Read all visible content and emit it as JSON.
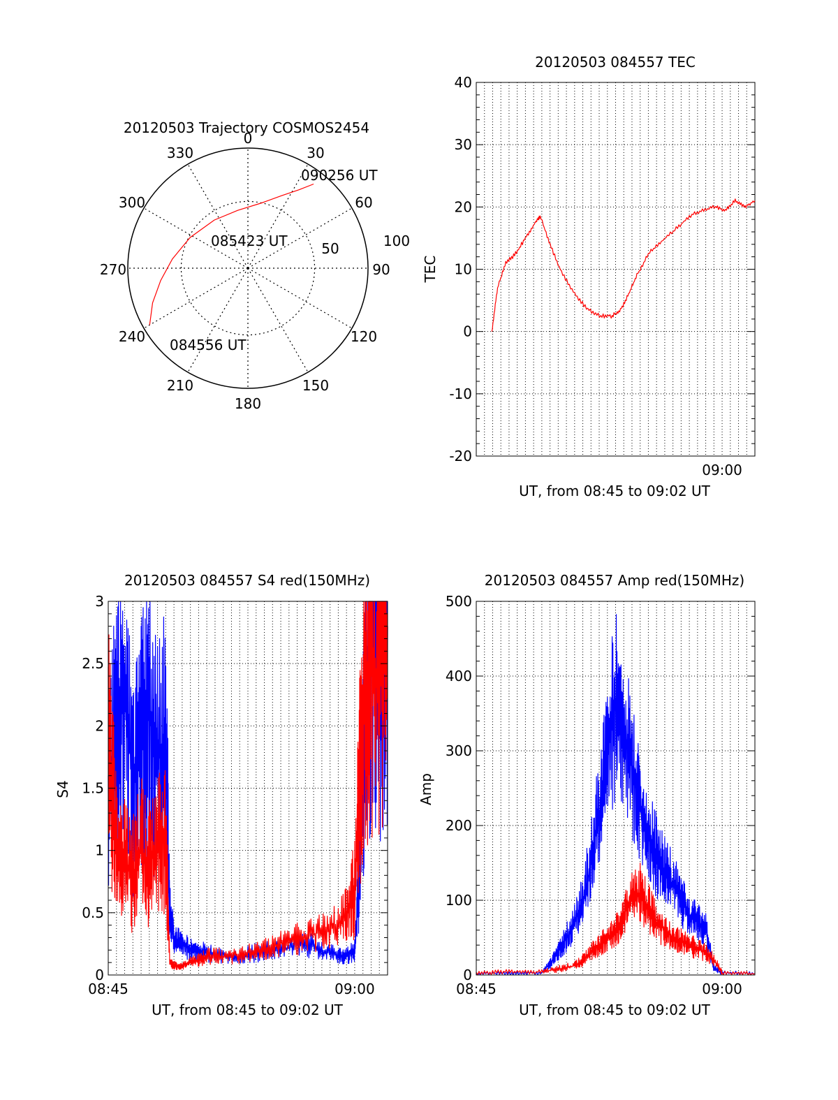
{
  "colors": {
    "series_red": "#ff0000",
    "series_blue": "#0000ff",
    "axis": "#000000"
  },
  "chart_data": [
    {
      "id": "trajectory",
      "type": "polar",
      "title": "20120503 Trajectory COSMOS2454",
      "azimuth_labels": [
        "0",
        "30",
        "60",
        "90",
        "120",
        "150",
        "180",
        "210",
        "240",
        "270",
        "300",
        "330"
      ],
      "radial_labels": [
        "50",
        "100"
      ],
      "annotations": [
        "090256 UT",
        "085423 UT",
        "084556 UT"
      ],
      "track": {
        "color": "red",
        "points": [
          {
            "az": 240,
            "el": 5
          },
          {
            "az": 250,
            "el": 14
          },
          {
            "az": 262,
            "el": 24
          },
          {
            "az": 277,
            "el": 33
          },
          {
            "az": 298,
            "el": 41
          },
          {
            "az": 325,
            "el": 46
          },
          {
            "az": 350,
            "el": 46
          },
          {
            "az": 12,
            "el": 40
          },
          {
            "az": 25,
            "el": 30
          },
          {
            "az": 33,
            "el": 20
          },
          {
            "az": 38,
            "el": 10
          }
        ]
      }
    },
    {
      "id": "tec",
      "type": "line",
      "title": "20120503 084557 TEC",
      "xlabel": "UT, from 08:45 to 09:02 UT",
      "ylabel": "TEC",
      "xlim": [
        0,
        17
      ],
      "ylim": [
        -20,
        40
      ],
      "yticks": [
        "-20",
        "-10",
        "0",
        "10",
        "20",
        "30",
        "40"
      ],
      "xticks": [
        {
          "pos": 15,
          "label": "09:00"
        }
      ],
      "series": [
        {
          "color": "red",
          "x": [
            0.95,
            1.3,
            1.8,
            2.4,
            3.0,
            3.6,
            3.9,
            4.5,
            5.2,
            6.0,
            6.8,
            7.6,
            8.3,
            8.8,
            9.3,
            9.8,
            10.5,
            11.3,
            12.2,
            13.0,
            13.8,
            14.6,
            15.2,
            15.8,
            16.4,
            17.0
          ],
          "y": [
            0,
            7,
            11,
            12.5,
            15,
            17.5,
            18.5,
            14,
            9.5,
            6,
            3.5,
            2.5,
            2.5,
            3.5,
            6,
            9,
            12.5,
            14.5,
            16.5,
            18.5,
            19.5,
            20,
            19.5,
            21,
            20,
            21
          ]
        }
      ]
    },
    {
      "id": "s4",
      "type": "line",
      "title": "20120503 084557 S4 red(150MHz)",
      "xlabel": "UT, from 08:45 to 09:02 UT",
      "ylabel": "S4",
      "xlim": [
        0,
        17
      ],
      "ylim": [
        0,
        3
      ],
      "yticks": [
        "0",
        "0.5",
        "1",
        "1.5",
        "2",
        "2.5",
        "3"
      ],
      "xticks": [
        {
          "pos": 0,
          "label": "08:45"
        },
        {
          "pos": 15,
          "label": "09:00"
        }
      ],
      "series": [
        {
          "color": "blue",
          "x": [
            0.0,
            0.5,
            1.0,
            1.5,
            2.0,
            2.5,
            3.0,
            3.5,
            3.75,
            4.0,
            4.5,
            5.0,
            5.5,
            6.0,
            7.0,
            8.0,
            9.0,
            10.0,
            11.0,
            12.0,
            13.0,
            14.0,
            14.5,
            15.0,
            15.3,
            15.6,
            16.0,
            16.5,
            17.0
          ],
          "y": [
            1.6,
            1.9,
            2.3,
            1.5,
            1.8,
            2.2,
            1.7,
            1.9,
            0.5,
            0.3,
            0.25,
            0.2,
            0.2,
            0.18,
            0.15,
            0.15,
            0.18,
            0.2,
            0.22,
            0.25,
            0.2,
            0.15,
            0.15,
            0.2,
            0.9,
            2.0,
            2.8,
            2.5,
            2.8
          ]
        },
        {
          "color": "red",
          "x": [
            0.0,
            0.5,
            1.0,
            1.5,
            2.0,
            2.5,
            3.0,
            3.5,
            3.75,
            4.0,
            4.5,
            5.0,
            5.5,
            6.0,
            7.0,
            8.0,
            9.0,
            10.0,
            11.0,
            12.0,
            13.0,
            14.0,
            14.5,
            15.0,
            15.3,
            15.6,
            16.0,
            16.5,
            17.0
          ],
          "y": [
            1.8,
            1.1,
            0.9,
            0.8,
            1.0,
            0.9,
            1.0,
            1.1,
            0.1,
            0.08,
            0.07,
            0.1,
            0.12,
            0.15,
            0.15,
            0.16,
            0.2,
            0.22,
            0.28,
            0.3,
            0.35,
            0.4,
            0.5,
            0.7,
            1.5,
            2.2,
            2.6,
            2.3,
            2.8
          ]
        }
      ]
    },
    {
      "id": "amp",
      "type": "line",
      "title": "20120503 084557 Amp red(150MHz)",
      "xlabel": "UT, from 08:45 to 09:02 UT",
      "ylabel": "Amp",
      "xlim": [
        0,
        17
      ],
      "ylim": [
        0,
        500
      ],
      "yticks": [
        "0",
        "100",
        "200",
        "300",
        "400",
        "500"
      ],
      "xticks": [
        {
          "pos": 0,
          "label": "08:45"
        },
        {
          "pos": 15,
          "label": "09:00"
        }
      ],
      "series": [
        {
          "color": "blue",
          "x": [
            0.0,
            2.0,
            4.0,
            4.5,
            5.0,
            5.5,
            6.0,
            6.5,
            7.0,
            7.5,
            8.0,
            8.5,
            9.0,
            9.5,
            10.0,
            10.5,
            11.0,
            11.5,
            12.0,
            12.5,
            13.0,
            13.5,
            14.0,
            14.5,
            15.0,
            17.0
          ],
          "y": [
            2,
            2,
            3,
            15,
            30,
            50,
            70,
            100,
            150,
            220,
            300,
            360,
            330,
            280,
            220,
            190,
            160,
            140,
            120,
            100,
            80,
            70,
            60,
            10,
            3,
            2
          ]
        },
        {
          "color": "red",
          "x": [
            0.0,
            2.0,
            4.0,
            5.0,
            6.0,
            6.5,
            7.0,
            7.5,
            8.0,
            8.5,
            9.0,
            9.5,
            10.0,
            10.5,
            11.0,
            11.5,
            12.0,
            12.5,
            13.0,
            13.5,
            14.0,
            14.5,
            15.0,
            17.0
          ],
          "y": [
            2,
            5,
            4,
            8,
            12,
            20,
            30,
            40,
            50,
            60,
            80,
            100,
            110,
            90,
            70,
            60,
            50,
            45,
            40,
            35,
            30,
            20,
            3,
            2
          ]
        }
      ]
    }
  ]
}
